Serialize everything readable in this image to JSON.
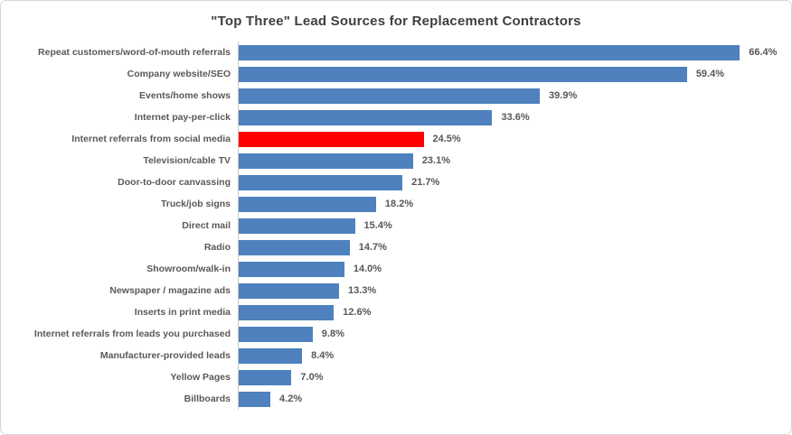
{
  "chart_data": {
    "type": "bar",
    "orientation": "horizontal",
    "title": "\"Top Three\" Lead Sources for Replacement Contractors",
    "categories": [
      "Repeat customers/word-of-mouth referrals",
      "Company website/SEO",
      "Events/home shows",
      "Internet pay-per-click",
      "Internet referrals from social media",
      "Television/cable TV",
      "Door-to-door canvassing",
      "Truck/job signs",
      "Direct mail",
      "Radio",
      "Showroom/walk-in",
      "Newspaper / magazine ads",
      "Inserts in print media",
      "Internet referrals from leads you purchased",
      "Manufacturer-provided leads",
      "Yellow Pages",
      "Billboards"
    ],
    "values": [
      66.4,
      59.4,
      39.9,
      33.6,
      24.5,
      23.1,
      21.7,
      18.2,
      15.4,
      14.7,
      14.0,
      13.3,
      12.6,
      9.8,
      8.4,
      7.0,
      4.2
    ],
    "value_suffix": "%",
    "highlight_index": 4,
    "bar_color": "#4e81bd",
    "highlight_color": "#ff0000",
    "xlim": [
      0,
      72
    ],
    "xlabel": "",
    "ylabel": "",
    "grid": false,
    "legend": false,
    "axis_line_color": "#c9c9c9",
    "label_color": "#595959",
    "title_color": "#3f3f3f"
  }
}
